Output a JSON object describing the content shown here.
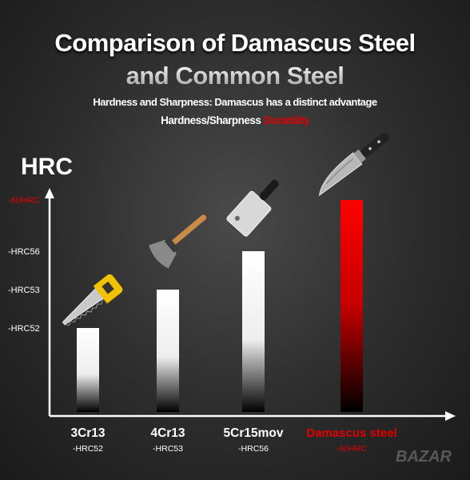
{
  "header": {
    "title_line1": "Comparison of Damascus Steel",
    "title_line2": "and Common Steel",
    "subtitle": "Hardness and Sharpness: Damascus has a distinct advantage",
    "legend_white": "Hardness/Sharpness",
    "legend_red": "Durability"
  },
  "watermark": "BAZAR",
  "chart_data": {
    "type": "bar",
    "ylabel": "HRC",
    "categories": [
      "3Cr13",
      "4Cr13",
      "5Cr15mov",
      "Damascus steel"
    ],
    "sublabels": [
      "-HRC52",
      "-HRC53",
      "-HRC56",
      "-60HRC"
    ],
    "values": [
      52,
      53,
      56,
      60
    ],
    "ytick_labels": [
      "-HRC52",
      "-HRC53",
      "-HRC56",
      "-60HRC"
    ],
    "ytick_values": [
      52,
      53,
      56,
      60
    ],
    "highlight_index": 3,
    "colors": {
      "normal": "#ffffff",
      "highlight": "#e00000",
      "highlight_text": "#e00000"
    },
    "icons": [
      "hand-saw-icon",
      "axe-icon",
      "cleaver-icon",
      "chef-knife-icon"
    ]
  }
}
